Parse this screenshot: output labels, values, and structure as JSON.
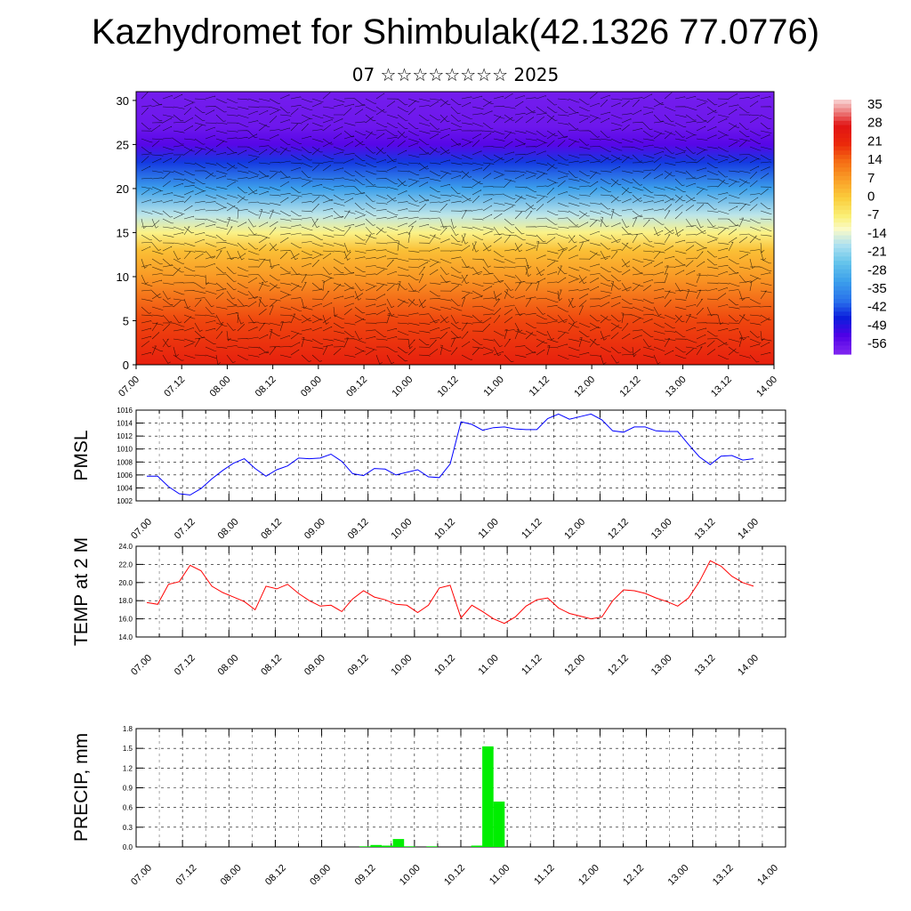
{
  "header": {
    "title": "Kazhydromet for Shimbulak(42.1326 77.0776)",
    "subtitle": "07 ☆☆☆☆☆☆☆☆ 2025"
  },
  "chart_data": [
    {
      "type": "heatmap",
      "title": "Kazhydromet for Shimbulak(42.1326 77.0776)",
      "subtitle": "07 ☆☆☆☆☆☆☆☆ 2025",
      "xlabel": "",
      "ylabel": "",
      "x_ticks": [
        "07.00",
        "07.12",
        "08.00",
        "08.12",
        "09.00",
        "09.12",
        "10.00",
        "10.12",
        "11.00",
        "11.12",
        "12.00",
        "12.12",
        "13.00",
        "13.12",
        "14.00"
      ],
      "y_ticks": [
        0,
        5,
        10,
        15,
        20,
        25,
        30
      ],
      "ylim": [
        0,
        31
      ],
      "colorbar_labels": [
        "35",
        "28",
        "21",
        "14",
        "7",
        "0",
        "-7",
        "-14",
        "-21",
        "-28",
        "-35",
        "-42",
        "-49",
        "-56"
      ],
      "colorbar_range": [
        -60,
        38
      ],
      "levels": [
        {
          "height": 0,
          "value": 24
        },
        {
          "height": 5,
          "value": 18
        },
        {
          "height": 10,
          "value": 8
        },
        {
          "height": 13,
          "value": 2
        },
        {
          "height": 15,
          "value": -8
        },
        {
          "height": 17,
          "value": -17
        },
        {
          "height": 20,
          "value": -32
        },
        {
          "height": 23,
          "value": -44
        },
        {
          "height": 25,
          "value": -54
        },
        {
          "height": 27,
          "value": -57
        },
        {
          "height": 31,
          "value": -58
        }
      ],
      "overlay": "wind barbs",
      "colors": {
        "warm": "#e8180c",
        "cold": "#7a2cf0"
      }
    },
    {
      "type": "line",
      "ylabel": "PMSL",
      "xlabel": "",
      "ylim": [
        1002,
        1016
      ],
      "y_ticks": [
        1002,
        1004,
        1006,
        1008,
        1010,
        1012,
        1014,
        1016
      ],
      "x_ticks": [
        "07.00",
        "07.12",
        "08.00",
        "08.12",
        "09.00",
        "09.12",
        "10.00",
        "10.12",
        "11.00",
        "11.12",
        "12.00",
        "12.12",
        "13.00",
        "13.12",
        "14.00"
      ],
      "color": "#0000ff",
      "grid": true,
      "values": [
        1005.8,
        1005.8,
        1004.2,
        1003.1,
        1002.9,
        1003.9,
        1005.4,
        1006.7,
        1007.8,
        1008.5,
        1007.0,
        1005.8,
        1006.8,
        1007.4,
        1008.6,
        1008.5,
        1008.6,
        1009.2,
        1008.1,
        1006.2,
        1005.9,
        1007.0,
        1006.9,
        1006.0,
        1006.4,
        1006.8,
        1005.7,
        1005.6,
        1007.7,
        1014.2,
        1013.8,
        1012.9,
        1013.3,
        1013.4,
        1013.1,
        1013.0,
        1013.0,
        1014.7,
        1015.4,
        1014.6,
        1015.0,
        1015.4,
        1014.5,
        1012.8,
        1012.6,
        1013.4,
        1013.4,
        1012.8,
        1012.7,
        1012.7,
        1010.7,
        1008.8,
        1007.6,
        1008.9,
        1009.0,
        1008.3,
        1008.5
      ]
    },
    {
      "type": "line",
      "ylabel": "TEMP at 2 M",
      "xlabel": "",
      "ylim": [
        14,
        24
      ],
      "y_ticks": [
        "14.0",
        "16.0",
        "18.0",
        "20.0",
        "22.0",
        "24.0"
      ],
      "x_ticks": [
        "07.00",
        "07.12",
        "08.00",
        "08.12",
        "09.00",
        "09.12",
        "10.00",
        "10.12",
        "11.00",
        "11.12",
        "12.00",
        "12.12",
        "13.00",
        "13.12",
        "14.00"
      ],
      "color": "#ff0000",
      "grid": true,
      "values": [
        17.8,
        17.6,
        19.8,
        20.1,
        21.9,
        21.3,
        19.6,
        18.9,
        18.4,
        17.9,
        17.0,
        19.6,
        19.3,
        19.8,
        18.8,
        18.0,
        17.4,
        17.5,
        16.8,
        18.2,
        19.1,
        18.4,
        18.1,
        17.6,
        17.5,
        16.7,
        17.5,
        19.4,
        19.7,
        16.1,
        17.5,
        16.8,
        16.0,
        15.5,
        16.2,
        17.4,
        18.1,
        18.3,
        17.2,
        16.6,
        16.3,
        16.0,
        16.2,
        18.0,
        19.2,
        19.1,
        18.8,
        18.3,
        17.9,
        17.4,
        18.3,
        20.1,
        22.4,
        21.8,
        20.7,
        20.0,
        19.6
      ]
    },
    {
      "type": "bar",
      "ylabel": "PRECIP, mm",
      "xlabel": "",
      "ylim": [
        0,
        1.8
      ],
      "y_ticks": [
        "0.0",
        "0.3",
        "0.6",
        "0.9",
        "1.2",
        "1.5",
        "1.8"
      ],
      "x_ticks": [
        "07.00",
        "07.12",
        "08.00",
        "08.12",
        "09.00",
        "09.12",
        "10.00",
        "10.12",
        "11.00",
        "11.12",
        "12.00",
        "12.12",
        "13.00",
        "13.12",
        "14.00"
      ],
      "color": "#00ee00",
      "grid": true,
      "hours": [
        57,
        60,
        63,
        66,
        69,
        75,
        87,
        90,
        93
      ],
      "values": [
        0.01,
        0.03,
        0.02,
        0.12,
        0.01,
        0.01,
        0.02,
        1.53,
        0.69
      ]
    }
  ]
}
